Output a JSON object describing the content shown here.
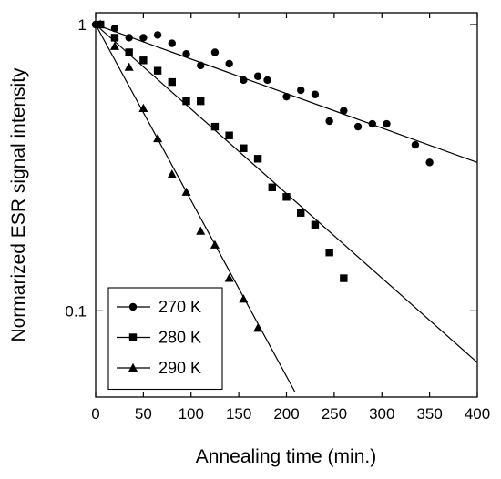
{
  "chart_data": {
    "type": "scatter",
    "title": "",
    "xlabel": "Annealing time (min.)",
    "ylabel": "Normarized ESR signal intensity",
    "xlim": [
      0,
      400
    ],
    "ylim": [
      0.05,
      1.1
    ],
    "yscale": "log",
    "x_ticks": [
      0,
      50,
      100,
      150,
      200,
      250,
      300,
      350,
      400
    ],
    "y_ticks": [
      0.1,
      1
    ],
    "y_tick_labels": [
      "0.1",
      "1"
    ],
    "legend_position": "bottom-left",
    "series": [
      {
        "name": "270 K",
        "marker": "circle",
        "x": [
          0,
          5,
          20,
          35,
          50,
          65,
          80,
          95,
          110,
          125,
          140,
          155,
          170,
          180,
          200,
          215,
          230,
          245,
          260,
          275,
          290,
          305,
          335,
          350
        ],
        "y": [
          1.0,
          1.0,
          0.97,
          0.9,
          0.9,
          0.92,
          0.86,
          0.79,
          0.72,
          0.8,
          0.73,
          0.64,
          0.66,
          0.64,
          0.56,
          0.59,
          0.57,
          0.46,
          0.5,
          0.44,
          0.45,
          0.45,
          0.38,
          0.33
        ],
        "fit": {
          "x": [
            0,
            400
          ],
          "y": [
            1.0,
            0.33
          ]
        }
      },
      {
        "name": "280 K",
        "marker": "square",
        "x": [
          5,
          20,
          35,
          50,
          65,
          80,
          95,
          110,
          125,
          140,
          155,
          170,
          185,
          200,
          215,
          230,
          245,
          260
        ],
        "y": [
          1.0,
          0.9,
          0.8,
          0.75,
          0.69,
          0.63,
          0.54,
          0.54,
          0.44,
          0.41,
          0.37,
          0.34,
          0.27,
          0.25,
          0.22,
          0.2,
          0.16,
          0.13
        ],
        "fit": {
          "x": [
            0,
            400
          ],
          "y": [
            1.0,
            0.066
          ]
        }
      },
      {
        "name": "290 K",
        "marker": "triangle",
        "x": [
          5,
          20,
          35,
          50,
          65,
          80,
          95,
          110,
          125,
          140,
          155,
          170
        ],
        "y": [
          1.0,
          0.84,
          0.71,
          0.51,
          0.4,
          0.3,
          0.26,
          0.19,
          0.17,
          0.13,
          0.11,
          0.087
        ],
        "fit": {
          "x": [
            0,
            209
          ],
          "y": [
            1.0,
            0.052
          ]
        }
      }
    ]
  }
}
